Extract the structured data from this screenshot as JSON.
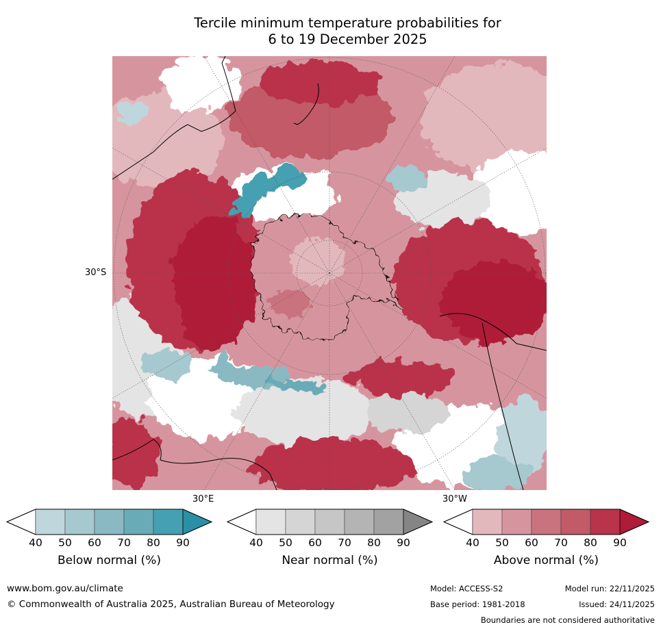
{
  "title": {
    "line1": "Tercile minimum temperature probabilities for",
    "line2": "6 to 19 December 2025"
  },
  "map": {
    "projection": "south-polar-stereographic",
    "labels": {
      "lat_30s": "30°S",
      "lon_30e": "30°E",
      "lon_30w": "30°W"
    }
  },
  "colorbars": [
    {
      "id": "below",
      "label": "Below normal (%)",
      "ticks": [
        "40",
        "50",
        "60",
        "70",
        "80",
        "90"
      ],
      "colors": [
        "#ffffff",
        "#bed6dc",
        "#a6c8cf",
        "#8ab9c3",
        "#69abb7",
        "#45a0b1",
        "#2990a6"
      ]
    },
    {
      "id": "near",
      "label": "Near normal (%)",
      "ticks": [
        "40",
        "50",
        "60",
        "70",
        "80",
        "90"
      ],
      "colors": [
        "#ffffff",
        "#e4e4e4",
        "#d5d5d5",
        "#c6c6c6",
        "#b4b4b4",
        "#a2a2a2",
        "#858585"
      ]
    },
    {
      "id": "above",
      "label": "Above normal (%)",
      "ticks": [
        "40",
        "50",
        "60",
        "70",
        "80",
        "90"
      ],
      "colors": [
        "#ffffff",
        "#e3b8bd",
        "#d6959e",
        "#c9737f",
        "#c25a67",
        "#b9334a",
        "#af1b38"
      ]
    }
  ],
  "footer": {
    "url": "www.bom.gov.au/climate",
    "copyright": "© Commonwealth of Australia 2025, Australian Bureau of Meteorology",
    "model": "Model: ACCESS-S2",
    "base_period": "Base period: 1981-2018",
    "model_run": "Model run: 22/11/2025",
    "issued": "Issued: 24/11/2025",
    "boundaries": "Boundaries are not considered authoritative"
  }
}
